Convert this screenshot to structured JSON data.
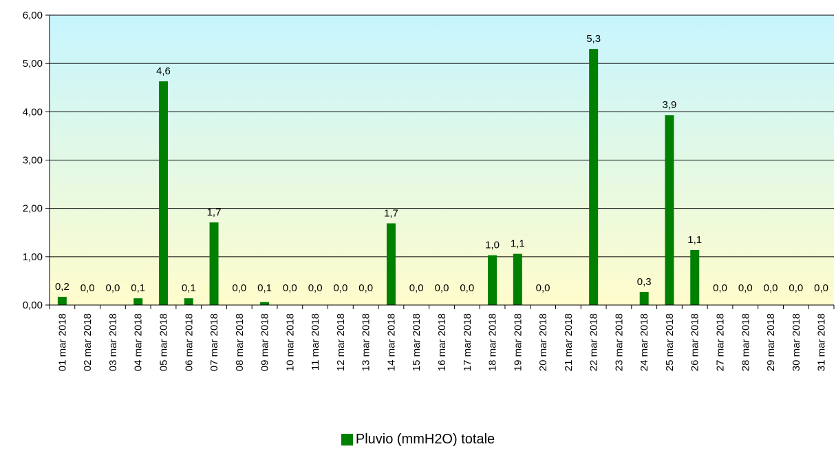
{
  "chart_data": {
    "type": "bar",
    "categories": [
      "01 mar 2018",
      "02 mar 2018",
      "03 mar 2018",
      "04 mar 2018",
      "05 mar 2018",
      "06 mar 2018",
      "07 mar 2018",
      "08 mar 2018",
      "09 mar 2018",
      "10 mar 2018",
      "11 mar 2018",
      "12 mar 2018",
      "13 mar 2018",
      "14 mar 2018",
      "15 mar 2018",
      "16 mar 2018",
      "17 mar 2018",
      "18 mar 2018",
      "19 mar 2018",
      "20 mar 2018",
      "21 mar 2018",
      "22 mar 2018",
      "23 mar 2018",
      "24 mar 2018",
      "25 mar 2018",
      "26 mar 2018",
      "27 mar 2018",
      "28 mar 2018",
      "29 mar 2018",
      "30 mar 2018",
      "31 mar 2018"
    ],
    "series": [
      {
        "name": "Pluvio (mmH2O) totale",
        "values": [
          0.17,
          0,
          0,
          0.14,
          4.63,
          0.14,
          1.71,
          0,
          0.06,
          0,
          0,
          0,
          0,
          1.69,
          0,
          0,
          0,
          1.03,
          1.06,
          0,
          null,
          5.3,
          null,
          0.27,
          3.93,
          1.14,
          0,
          0,
          0,
          0,
          0
        ],
        "labels": [
          "0,2",
          "0,0",
          "0,0",
          "0,1",
          "4,6",
          "0,1",
          "1,7",
          "0,0",
          "0,1",
          "0,0",
          "0,0",
          "0,0",
          "0,0",
          "1,7",
          "0,0",
          "0,0",
          "0,0",
          "1,0",
          "1,1",
          "0,0",
          "",
          "5,3",
          "",
          "0,3",
          "3,9",
          "1,1",
          "0,0",
          "0,0",
          "0,0",
          "0,0",
          "0,0"
        ],
        "color": "#008000"
      }
    ],
    "ylim": [
      0,
      6
    ],
    "yticks": [
      "0,00",
      "1,00",
      "2,00",
      "3,00",
      "4,00",
      "5,00",
      "6,00"
    ],
    "grid": true,
    "background_gradient": [
      "#c6f5ff",
      "#fffccc"
    ],
    "legend_position": "bottom-center"
  },
  "legend": {
    "label": "Pluvio (mmH2O) totale"
  }
}
